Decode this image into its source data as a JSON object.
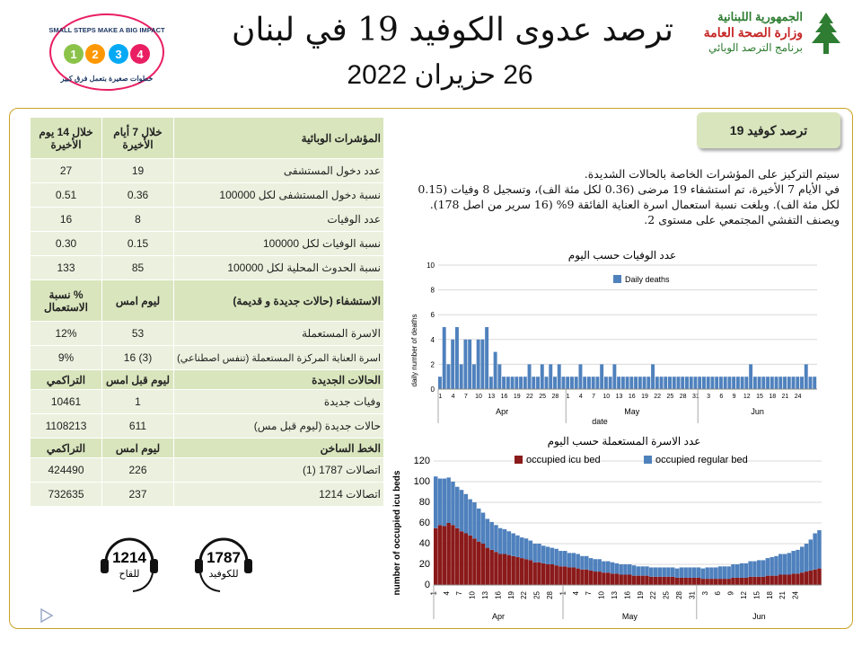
{
  "header": {
    "title": "ترصد عدوى الكوفيد 19 في لبنان",
    "date": "26 حزيران 2022",
    "ministry_line1": "الجمهورية اللبنانية",
    "ministry_line2": "وزارة الصحة العامة",
    "ministry_line3": "برنامج الترصد الوبائي",
    "badge_top": "SMALL STEPS MAKE A BIG IMPACT",
    "badge_bottom": "خطوات صغيرة بتعمل فرق كبير"
  },
  "table": {
    "section1": {
      "label": "المؤشرات الوبائية",
      "col7": "خلال 7 أيام الأخيرة",
      "col14": "خلال 14 يوم الأخيرة"
    },
    "indicators": [
      {
        "label": "عدد دخول المستشفى",
        "d7": "19",
        "d14": "27"
      },
      {
        "label": "نسبة دخول المستشفى لكل 100000",
        "d7": "0.36",
        "d14": "0.51"
      },
      {
        "label": "عدد الوفيات",
        "d7": "8",
        "d14": "16"
      },
      {
        "label": "نسبة الوفيات لكل 100000",
        "d7": "0.15",
        "d14": "0.30"
      },
      {
        "label": "نسبة الحدوث المحلية لكل 100000",
        "d7": "85",
        "d14": "133"
      }
    ],
    "section2": {
      "label": "الاستشفاء (حالات جديدة و قديمة)",
      "col1": "ليوم امس",
      "col2": "% نسبة الاستعمال"
    },
    "hospital": [
      {
        "label": "الاسرة المستعملة",
        "v1": "53",
        "v2": "12%"
      },
      {
        "label": "اسرة العناية المركزة المستعملة (تنفس اصطناعي)",
        "v1": "(3) 16",
        "v2": "9%"
      }
    ],
    "section3": {
      "label": "الحالات الجديدة",
      "col1": "ليوم قبل امس",
      "col2": "التراكمي"
    },
    "cases": [
      {
        "label": "وفيات جديدة",
        "v1": "1",
        "v2": "10461"
      },
      {
        "label": "حالات جديدة (ليوم قبل مس)",
        "v1": "611",
        "v2": "1108213"
      }
    ],
    "section4": {
      "label": "الخط الساخن",
      "col1": "ليوم امس",
      "col2": "التراكمي"
    },
    "hotline": [
      {
        "label": "اتصالات 1787 (1)",
        "v1": "226",
        "v2": "424490"
      },
      {
        "label": "اتصالات 1214",
        "v1": "237",
        "v2": "732635"
      }
    ]
  },
  "box_title": "ترصد كوفيد 19",
  "summary": [
    "سيتم التركيز على المؤشرات الخاصة بالحالات الشديدة.",
    "في الأيام 7 الأخيرة، تم استشفاء 19 مرضى (0.36 لكل مئة الف)، وتسجيل 8 وفيات (0.15 لكل مئة الف). وبلغت نسبة استعمال اسرة العناية الفائقة 9% (16 سرير من اصل 178).",
    "ويصنف التفشي المجتمعي على مستوى 2."
  ],
  "hotlines": [
    {
      "number": "1214",
      "label": "للقاح",
      "color": "#c62828"
    },
    {
      "number": "1787",
      "label": "للكوفيد",
      "color": "#1f3864"
    }
  ],
  "colors": {
    "green_header": "#d9e5bd",
    "green_row": "#ebf1de",
    "deaths": "#4f81bd",
    "icu": "#8b1a1a",
    "regular": "#4f81bd",
    "border": "#c9a227"
  },
  "chart_data": [
    {
      "type": "bar",
      "title": "عدد الوفيات حسب اليوم",
      "xlabel": "date",
      "ylabel": "daily number of deaths",
      "ylim": [
        0,
        10
      ],
      "yticks": [
        0,
        2,
        4,
        6,
        8,
        10
      ],
      "legend": "top-left",
      "series": [
        {
          "name": "Daily deaths",
          "values": [
            1,
            5,
            2,
            4,
            5,
            2,
            4,
            4,
            2,
            4,
            4,
            5,
            1,
            3,
            2,
            1,
            1,
            1,
            1,
            1,
            1,
            2,
            1,
            1,
            2,
            1,
            2,
            1,
            2,
            1,
            1,
            1,
            1,
            2,
            1,
            1,
            1,
            1,
            2,
            1,
            1,
            2,
            1,
            1,
            1,
            1,
            1,
            1,
            1,
            1,
            2,
            1,
            1,
            1,
            1,
            1,
            1,
            1,
            1,
            1,
            1,
            1,
            1,
            1,
            1,
            1,
            1,
            1,
            1,
            1,
            1,
            1,
            1,
            2,
            1,
            1,
            1,
            1,
            1,
            1,
            1,
            1,
            1,
            1,
            1,
            1,
            2,
            1,
            1
          ]
        }
      ],
      "x_tick_labels": [
        "1",
        "4",
        "7",
        "10",
        "13",
        "16",
        "19",
        "22",
        "25",
        "28",
        "1",
        "4",
        "7",
        "10",
        "13",
        "16",
        "19",
        "22",
        "25",
        "28",
        "31",
        "3",
        "6",
        "9",
        "12",
        "15",
        "18",
        "21",
        "24"
      ],
      "month_labels": [
        "Apr",
        "May",
        "Jun"
      ]
    },
    {
      "type": "bar",
      "title": "عدد الاسرة المستعملة حسب اليوم",
      "ylabel": "number of occupied icu beds",
      "ylim": [
        0,
        120
      ],
      "yticks": [
        0,
        20,
        40,
        60,
        80,
        100,
        120
      ],
      "legend": "top",
      "series": [
        {
          "name": "occupied icu bed",
          "values": [
            55,
            58,
            57,
            60,
            58,
            55,
            52,
            50,
            48,
            45,
            42,
            40,
            36,
            34,
            32,
            30,
            30,
            29,
            28,
            27,
            26,
            25,
            24,
            22,
            22,
            21,
            20,
            20,
            19,
            18,
            18,
            17,
            17,
            16,
            15,
            15,
            14,
            13,
            13,
            12,
            12,
            11,
            11,
            10,
            10,
            10,
            9,
            9,
            9,
            9,
            8,
            8,
            8,
            8,
            8,
            8,
            7,
            7,
            7,
            7,
            7,
            7,
            6,
            6,
            6,
            6,
            6,
            6,
            6,
            7,
            7,
            7,
            7,
            8,
            8,
            8,
            8,
            9,
            9,
            9,
            10,
            10,
            10,
            11,
            11,
            12,
            13,
            14,
            15,
            16
          ]
        },
        {
          "name": "occupied regular bed",
          "values": [
            50,
            45,
            46,
            44,
            42,
            40,
            40,
            38,
            35,
            35,
            32,
            30,
            28,
            27,
            26,
            25,
            24,
            23,
            22,
            21,
            20,
            20,
            19,
            18,
            18,
            17,
            17,
            16,
            16,
            15,
            15,
            14,
            14,
            14,
            13,
            13,
            12,
            12,
            12,
            11,
            11,
            11,
            10,
            10,
            10,
            10,
            10,
            9,
            9,
            9,
            9,
            9,
            9,
            9,
            9,
            9,
            9,
            10,
            10,
            10,
            10,
            10,
            10,
            11,
            11,
            11,
            12,
            12,
            12,
            13,
            13,
            14,
            14,
            15,
            15,
            16,
            16,
            17,
            18,
            19,
            20,
            20,
            21,
            22,
            23,
            25,
            27,
            30,
            35,
            37
          ]
        }
      ],
      "x_tick_labels": [
        "1",
        "4",
        "7",
        "10",
        "13",
        "16",
        "19",
        "22",
        "25",
        "28",
        "1",
        "4",
        "7",
        "10",
        "13",
        "16",
        "19",
        "22",
        "25",
        "28",
        "31",
        "3",
        "6",
        "9",
        "12",
        "15",
        "18",
        "21",
        "24"
      ],
      "month_labels": [
        "Apr",
        "May",
        "Jun"
      ]
    }
  ]
}
